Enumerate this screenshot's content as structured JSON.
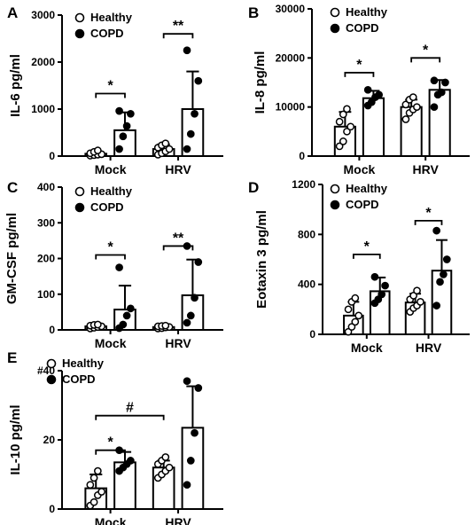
{
  "chart_data": [
    {
      "panel": "A",
      "type": "bar",
      "ylabel": "IL-6 pg/ml",
      "ylim": [
        0,
        3000
      ],
      "yticks": [
        0,
        1000,
        2000,
        3000
      ],
      "tick_labels": [
        "0",
        "1000",
        "2000",
        "3000"
      ],
      "categories": [
        "Mock",
        "HRV"
      ],
      "legend": [
        "Healthy",
        "COPD"
      ],
      "series": [
        {
          "name": "Healthy",
          "values": [
            50,
            150
          ],
          "error": [
            40,
            100
          ],
          "points": [
            [
              10,
              20,
              30,
              40,
              60,
              90,
              120
            ],
            [
              30,
              60,
              100,
              150,
              180,
              230,
              270
            ]
          ]
        },
        {
          "name": "COPD",
          "values": [
            550,
            1000
          ],
          "error": [
            380,
            800
          ],
          "points": [
            [
              150,
              420,
              640,
              900,
              960
            ],
            [
              150,
              470,
              900,
              1600,
              2250
            ]
          ]
        }
      ],
      "significance": [
        {
          "group": 0,
          "label": "*",
          "y": 1330
        },
        {
          "group": 1,
          "label": "**",
          "y": 2600
        }
      ]
    },
    {
      "panel": "B",
      "type": "bar",
      "ylabel": "IL-8 pg/ml",
      "ylim": [
        0,
        30000
      ],
      "yticks": [
        0,
        10000,
        20000,
        30000
      ],
      "tick_labels": [
        "0",
        "10000",
        "20000",
        "30000"
      ],
      "categories": [
        "Mock",
        "HRV"
      ],
      "legend": [
        "Healthy",
        "COPD"
      ],
      "series": [
        {
          "name": "Healthy",
          "values": [
            6000,
            10000
          ],
          "error": [
            3000,
            1500
          ],
          "points": [
            [
              2000,
              3000,
              5000,
              6000,
              7000,
              8500,
              9600
            ],
            [
              7500,
              8800,
              9500,
              10000,
              10500,
              11500,
              12000
            ]
          ]
        },
        {
          "name": "COPD",
          "values": [
            11800,
            13500
          ],
          "error": [
            1500,
            2000
          ],
          "points": [
            [
              10300,
              11000,
              12000,
              12500,
              13500
            ],
            [
              10000,
              12500,
              13000,
              15000,
              15400
            ]
          ]
        }
      ],
      "significance": [
        {
          "group": 0,
          "label": "*",
          "y": 17000
        },
        {
          "group": 1,
          "label": "*",
          "y": 20000
        }
      ]
    },
    {
      "panel": "C",
      "type": "bar",
      "ylabel": "GM-CSF pg/ml",
      "ylim": [
        0,
        400
      ],
      "yticks": [
        0,
        100,
        200,
        300,
        400
      ],
      "tick_labels": [
        "0",
        "100",
        "200",
        "300",
        "400"
      ],
      "categories": [
        "Mock",
        "HRV"
      ],
      "legend": [
        "Healthy",
        "COPD"
      ],
      "series": [
        {
          "name": "Healthy",
          "values": [
            10,
            8
          ],
          "error": [
            4,
            3
          ],
          "points": [
            [
              4,
              6,
              8,
              10,
              12,
              14,
              15
            ],
            [
              4,
              5,
              7,
              8,
              10,
              11,
              12
            ]
          ]
        },
        {
          "name": "COPD",
          "values": [
            57,
            97
          ],
          "error": [
            67,
            100
          ],
          "points": [
            [
              5,
              15,
              40,
              60,
              175
            ],
            [
              20,
              40,
              90,
              190,
              235
            ]
          ]
        }
      ],
      "significance": [
        {
          "group": 0,
          "label": "*",
          "y": 210
        },
        {
          "group": 1,
          "label": "**",
          "y": 235
        }
      ]
    },
    {
      "panel": "D",
      "type": "bar",
      "ylabel": "Eotaxin 3  pg/ml",
      "ylim": [
        0,
        1200
      ],
      "yticks": [
        0,
        400,
        800,
        1200
      ],
      "tick_labels": [
        "0",
        "400",
        "800",
        "1200"
      ],
      "categories": [
        "Mock",
        "HRV"
      ],
      "legend": [
        "Healthy",
        "COPD"
      ],
      "series": [
        {
          "name": "Healthy",
          "values": [
            150,
            255
          ],
          "error": [
            110,
            70
          ],
          "points": [
            [
              20,
              60,
              100,
              150,
              200,
              260,
              290
            ],
            [
              180,
              210,
              230,
              260,
              280,
              310,
              350
            ]
          ]
        },
        {
          "name": "COPD",
          "values": [
            345,
            510
          ],
          "error": [
            110,
            245
          ],
          "points": [
            [
              250,
              280,
              320,
              390,
              460
            ],
            [
              230,
              420,
              480,
              600,
              830
            ]
          ]
        }
      ],
      "significance": [
        {
          "group": 0,
          "label": "*",
          "y": 640
        },
        {
          "group": 1,
          "label": "*",
          "y": 910
        }
      ]
    },
    {
      "panel": "E",
      "type": "bar",
      "ylabel": "IL-10 pg/ml",
      "ylim": [
        0,
        40
      ],
      "yticks": [
        0,
        20,
        40
      ],
      "tick_labels": [
        "0",
        "20",
        "#40"
      ],
      "categories": [
        "Mock",
        "HRV"
      ],
      "legend": [
        "Healthy",
        "COPD"
      ],
      "series": [
        {
          "name": "Healthy",
          "values": [
            6,
            12
          ],
          "error": [
            4,
            2
          ],
          "points": [
            [
              1,
              2,
              4,
              5,
              7,
              9,
              11
            ],
            [
              9,
              10,
              11,
              12,
              13,
              14,
              15
            ]
          ]
        },
        {
          "name": "COPD",
          "values": [
            13.5,
            23.5
          ],
          "error": [
            3,
            12
          ],
          "points": [
            [
              11,
              12,
              13,
              14,
              17
            ],
            [
              7,
              14,
              22,
              35,
              37
            ]
          ]
        }
      ],
      "significance": [
        {
          "from": [
            0,
            0
          ],
          "to": [
            0,
            1
          ],
          "label": "*",
          "y": 17
        },
        {
          "from": [
            0,
            0
          ],
          "to": [
            1,
            0
          ],
          "label": "#",
          "y": 27
        }
      ]
    }
  ]
}
